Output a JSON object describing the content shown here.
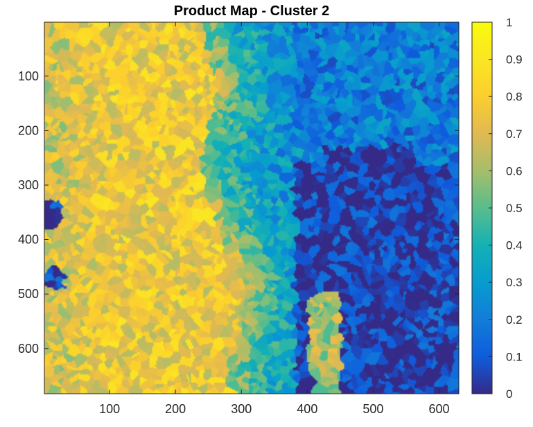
{
  "chart_data": {
    "type": "heatmap",
    "title": "Product Map - Cluster 2",
    "xlabel": "",
    "ylabel": "",
    "xlim": [
      1,
      630
    ],
    "ylim": [
      1,
      683
    ],
    "y_reversed": true,
    "x_ticks": [
      100,
      200,
      300,
      400,
      500,
      600
    ],
    "y_ticks": [
      100,
      200,
      300,
      400,
      500,
      600
    ],
    "colorbar": {
      "range": [
        0,
        1
      ],
      "ticks": [
        0,
        0.1,
        0.2,
        0.3,
        0.4,
        0.5,
        0.6,
        0.7,
        0.8,
        0.9,
        1
      ],
      "colormap": "parula"
    },
    "grid": false,
    "region_summary": [
      {
        "x_range": [
          1,
          250
        ],
        "y_range": [
          1,
          683
        ],
        "value": 0.78
      },
      {
        "x_range": [
          250,
          350
        ],
        "y_range": [
          1,
          683
        ],
        "value": 0.45
      },
      {
        "x_range": [
          350,
          630
        ],
        "y_range": [
          1,
          250
        ],
        "value": 0.2
      },
      {
        "x_range": [
          400,
          630
        ],
        "y_range": [
          250,
          683
        ],
        "value": 0.05
      }
    ]
  }
}
